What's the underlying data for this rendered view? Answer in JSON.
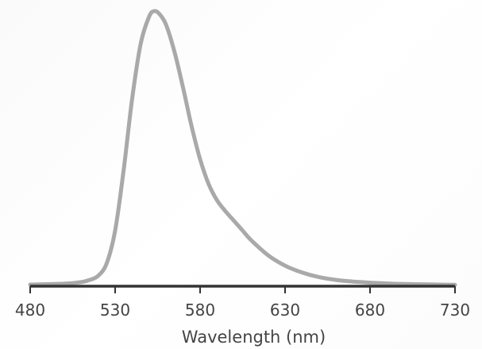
{
  "chart_data": {
    "type": "line",
    "title": "",
    "xlabel": "Wavelength (nm)",
    "ylabel": "",
    "xlim": [
      480,
      730
    ],
    "ylim": [
      0,
      1
    ],
    "xticks": [
      "480",
      "530",
      "580",
      "630",
      "680",
      "730"
    ],
    "grid": false,
    "series": [
      {
        "color": "#a9a9a9",
        "x": [
          480,
          500,
          510,
          515,
          520,
          525,
          530,
          535,
          540,
          545,
          550,
          553,
          556,
          560,
          565,
          570,
          575,
          580,
          585,
          590,
          595,
          600,
          605,
          610,
          620,
          630,
          640,
          650,
          660,
          670,
          680,
          690,
          700,
          710,
          720,
          730
        ],
        "y": [
          0.003,
          0.006,
          0.012,
          0.02,
          0.035,
          0.08,
          0.2,
          0.42,
          0.68,
          0.88,
          0.98,
          1.0,
          0.99,
          0.95,
          0.85,
          0.72,
          0.58,
          0.46,
          0.37,
          0.31,
          0.27,
          0.235,
          0.2,
          0.165,
          0.11,
          0.072,
          0.047,
          0.03,
          0.02,
          0.014,
          0.01,
          0.007,
          0.005,
          0.004,
          0.003,
          0.002
        ]
      }
    ]
  },
  "colors": {
    "curve": "#a9a9a9",
    "axis": "#333333",
    "text": "#444444"
  }
}
